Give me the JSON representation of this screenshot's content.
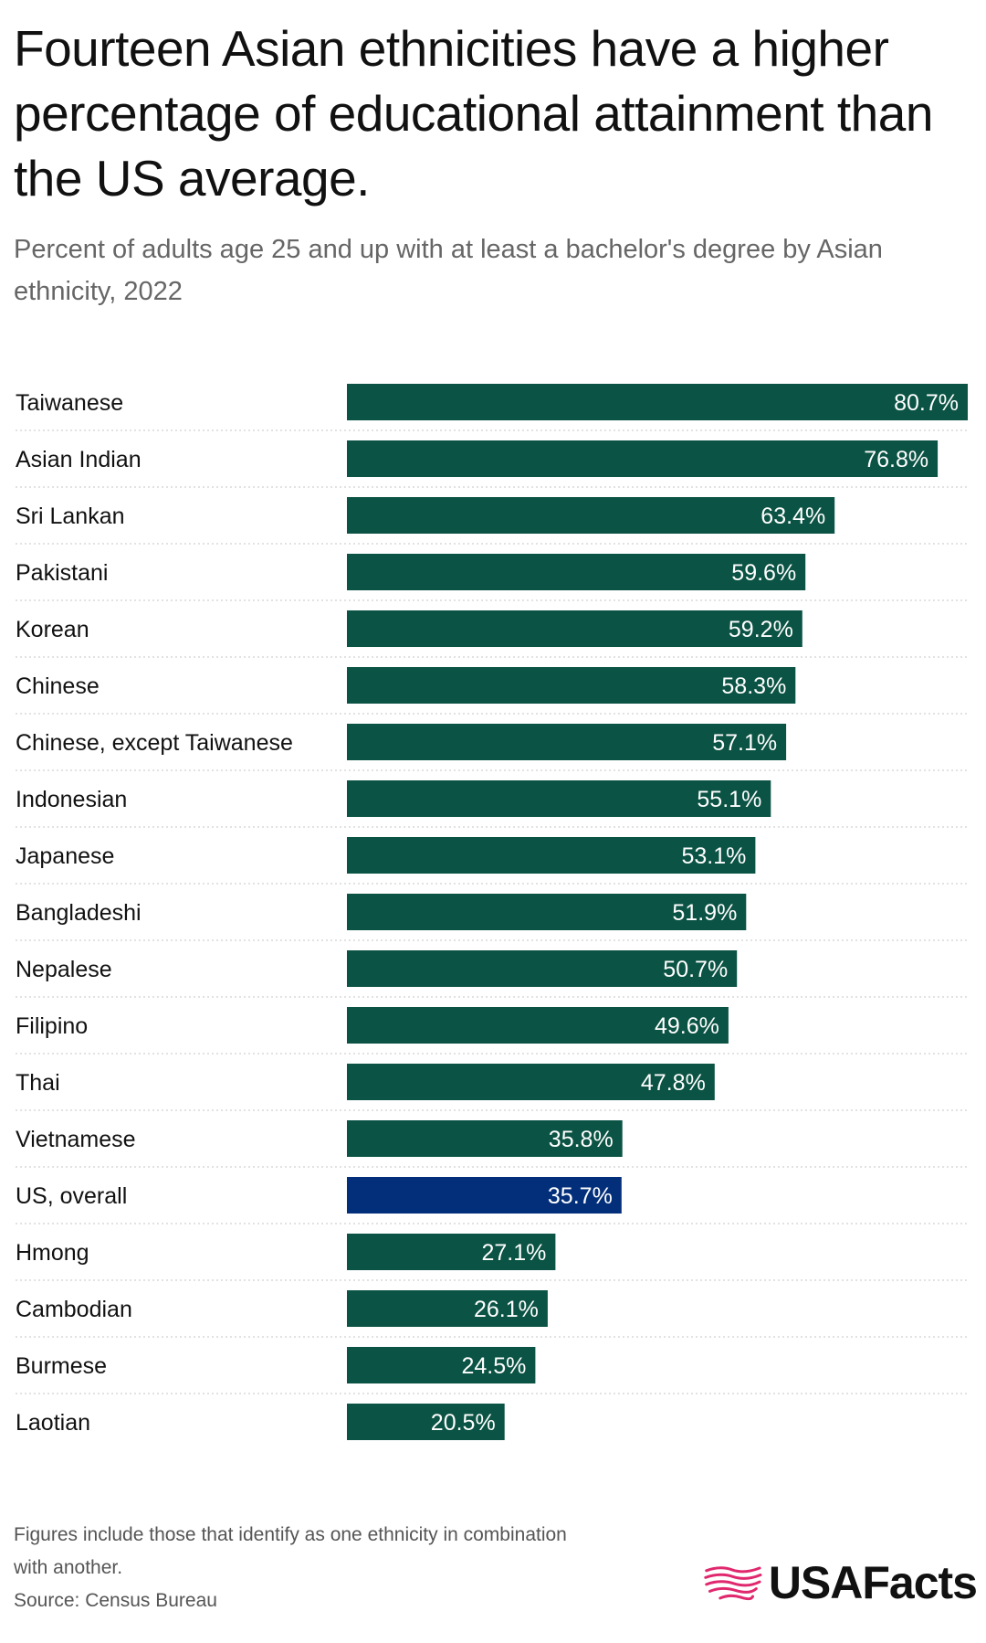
{
  "header": {
    "title": "Fourteen Asian ethnicities have a higher percentage of educational attainment than the US average.",
    "subtitle": "Percent of adults age 25 and up with at least a bachelor's degree by Asian ethnicity, 2022"
  },
  "chart_data": {
    "type": "bar",
    "orientation": "horizontal",
    "categories": [
      "Taiwanese",
      "Asian Indian",
      "Sri Lankan",
      "Pakistani",
      "Korean",
      "Chinese",
      "Chinese, except Taiwanese",
      "Indonesian",
      "Japanese",
      "Bangladeshi",
      "Nepalese",
      "Filipino",
      "Thai",
      "Vietnamese",
      "US, overall",
      "Hmong",
      "Cambodian",
      "Burmese",
      "Laotian"
    ],
    "values": [
      80.7,
      76.8,
      63.4,
      59.6,
      59.2,
      58.3,
      57.1,
      55.1,
      53.1,
      51.9,
      50.7,
      49.6,
      47.8,
      35.8,
      35.7,
      27.1,
      26.1,
      24.5,
      20.5
    ],
    "value_labels": [
      "80.7%",
      "76.8%",
      "63.4%",
      "59.6%",
      "59.2%",
      "58.3%",
      "57.1%",
      "55.1%",
      "53.1%",
      "51.9%",
      "50.7%",
      "49.6%",
      "47.8%",
      "35.8%",
      "35.7%",
      "27.1%",
      "26.1%",
      "24.5%",
      "20.5%"
    ],
    "highlight_category": "US, overall",
    "xlim": [
      0,
      80.7
    ],
    "grid": false,
    "legend": "none",
    "colors": {
      "bar": "#0b5344",
      "highlight": "#032f7a",
      "label_text": "#ffffff",
      "separator": "#d0d0d0"
    }
  },
  "footer": {
    "note_line1": "Figures include those that identify as one ethnicity in combination",
    "note_line2": "with another.",
    "source": "Source: Census Bureau",
    "logo_text": "USAFacts",
    "logo_icon": "usa-map-stripes-icon",
    "logo_color": "#e0286e"
  }
}
